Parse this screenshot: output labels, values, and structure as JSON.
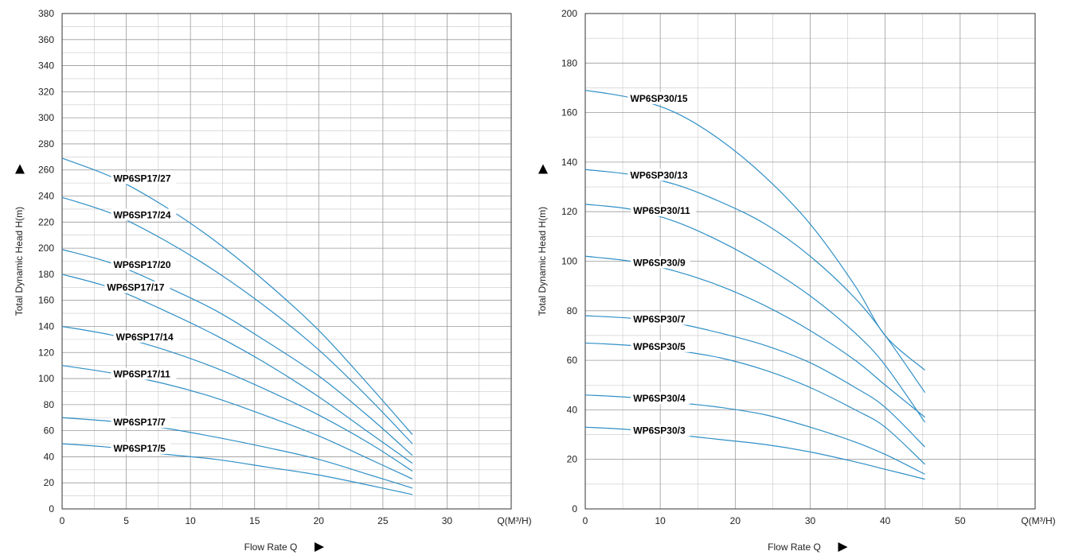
{
  "chart_data": [
    {
      "type": "line",
      "xlabel": "Flow Rate Q",
      "x_unit_label": "Q(M³/H)",
      "ylabel": "Total Dynamic Head H(m)",
      "xlim": [
        0,
        35
      ],
      "ylim": [
        0,
        380
      ],
      "x_ticks": [
        0,
        5,
        10,
        15,
        20,
        25,
        30
      ],
      "y_ticks": [
        0,
        20,
        40,
        60,
        80,
        100,
        120,
        140,
        160,
        180,
        200,
        220,
        240,
        260,
        280,
        300,
        320,
        340,
        360,
        380
      ],
      "series": [
        {
          "name": "WP6SP17/27",
          "x": [
            0,
            4,
            8,
            12,
            16,
            20,
            24,
            27.3
          ],
          "y": [
            269,
            254,
            232,
            205,
            173,
            137,
            94,
            57
          ]
        },
        {
          "name": "WP6SP17/24",
          "x": [
            0,
            4,
            8,
            12,
            16,
            20,
            24,
            27.3
          ],
          "y": [
            239,
            226,
            206,
            182,
            154,
            122,
            84,
            50
          ]
        },
        {
          "name": "WP6SP17/20",
          "x": [
            0,
            4,
            8,
            12,
            16,
            20,
            24,
            27.3
          ],
          "y": [
            199,
            188,
            171,
            152,
            128,
            102,
            70,
            41
          ]
        },
        {
          "name": "WP6SP17/17",
          "x": [
            0,
            4,
            8,
            12,
            16,
            20,
            24,
            27.3
          ],
          "y": [
            180,
            169,
            152,
            133,
            111,
            86,
            58,
            35
          ]
        },
        {
          "name": "WP6SP17/14",
          "x": [
            0,
            4,
            8,
            12,
            16,
            20,
            24,
            27.3
          ],
          "y": [
            140,
            133,
            122,
            108,
            91,
            72,
            50,
            29
          ]
        },
        {
          "name": "WP6SP17/11",
          "x": [
            0,
            4,
            8,
            12,
            16,
            20,
            24,
            27.3
          ],
          "y": [
            110,
            104,
            96,
            85,
            71,
            56,
            38,
            23
          ]
        },
        {
          "name": "WP6SP17/7",
          "x": [
            0,
            4,
            8,
            12,
            16,
            20,
            24,
            27.3
          ],
          "y": [
            70,
            67,
            62,
            55,
            47,
            38,
            26,
            16
          ]
        },
        {
          "name": "WP6SP17/5",
          "x": [
            0,
            4,
            8,
            12,
            16,
            20,
            24,
            27.3
          ],
          "y": [
            50,
            47,
            42,
            38,
            32,
            26,
            18,
            11
          ]
        }
      ],
      "label_positions_x": [
        4,
        4,
        4,
        3.5,
        4.2,
        4,
        4,
        4
      ]
    },
    {
      "type": "line",
      "xlabel": "Flow Rate Q",
      "x_unit_label": "Q(M³/H)",
      "ylabel": "Total Dynamic Head H(m)",
      "xlim": [
        0,
        60
      ],
      "ylim": [
        0,
        200
      ],
      "x_ticks": [
        0,
        10,
        20,
        30,
        40,
        50
      ],
      "y_ticks": [
        0,
        20,
        40,
        60,
        80,
        100,
        120,
        140,
        160,
        180,
        200
      ],
      "series": [
        {
          "name": "WP6SP30/15",
          "x": [
            0,
            6,
            12,
            18,
            24,
            30,
            36,
            40,
            45.3
          ],
          "y": [
            169,
            166,
            160,
            149,
            134,
            115,
            90,
            70,
            56
          ]
        },
        {
          "name": "WP6SP30/13",
          "x": [
            0,
            6,
            12,
            18,
            24,
            30,
            36,
            40,
            45.3
          ],
          "y": [
            137,
            135,
            131,
            124,
            115,
            102,
            85,
            70,
            47
          ]
        },
        {
          "name": "WP6SP30/11",
          "x": [
            0,
            6,
            12,
            18,
            24,
            30,
            36,
            40,
            45.3
          ],
          "y": [
            123,
            121,
            116,
            108,
            98,
            86,
            71,
            58,
            35
          ]
        },
        {
          "name": "WP6SP30/9",
          "x": [
            0,
            6,
            12,
            18,
            24,
            30,
            36,
            40,
            45.3
          ],
          "y": [
            102,
            100,
            96,
            90,
            82,
            72,
            60,
            50,
            37
          ]
        },
        {
          "name": "WP6SP30/7",
          "x": [
            0,
            6,
            12,
            18,
            24,
            30,
            36,
            40,
            45.3
          ],
          "y": [
            78,
            77,
            75,
            71,
            66,
            59,
            49,
            41,
            25
          ]
        },
        {
          "name": "WP6SP30/5",
          "x": [
            0,
            6,
            12,
            18,
            24,
            30,
            36,
            40,
            45.3
          ],
          "y": [
            67,
            66,
            64,
            61,
            56,
            49,
            40,
            33,
            18
          ]
        },
        {
          "name": "WP6SP30/4",
          "x": [
            0,
            6,
            12,
            18,
            24,
            30,
            36,
            40,
            45.3
          ],
          "y": [
            46,
            45,
            43,
            41,
            38,
            33,
            27,
            22,
            14
          ]
        },
        {
          "name": "WP6SP30/3",
          "x": [
            0,
            6,
            12,
            18,
            24,
            30,
            36,
            40,
            45.3
          ],
          "y": [
            33,
            32,
            30,
            28,
            26,
            23,
            19,
            16,
            12
          ]
        }
      ],
      "label_positions_x": [
        6,
        6,
        6.4,
        6.4,
        6.4,
        6.4,
        6.4,
        6.4
      ]
    }
  ]
}
